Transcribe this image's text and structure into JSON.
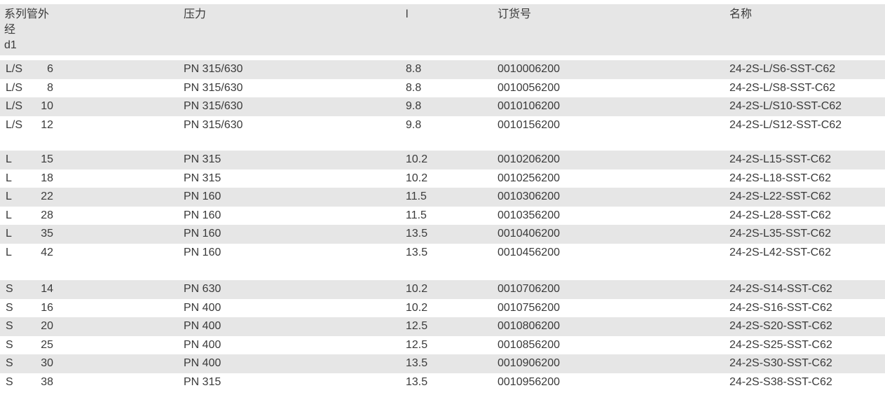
{
  "header": {
    "series_d1": "系列管外\n经\nd1",
    "pressure": "压力",
    "l": "l",
    "order_no": "订货号",
    "name": "名称"
  },
  "groups": [
    [
      {
        "series": "L/S",
        "d1": "6",
        "pressure": "PN 315/630",
        "l": "8.8",
        "order_no": "0010006200",
        "name": "24-2S-L/S6-SST-C62"
      },
      {
        "series": "L/S",
        "d1": "8",
        "pressure": "PN 315/630",
        "l": "8.8",
        "order_no": "0010056200",
        "name": "24-2S-L/S8-SST-C62"
      },
      {
        "series": "L/S",
        "d1": "10",
        "pressure": "PN 315/630",
        "l": "9.8",
        "order_no": "0010106200",
        "name": "24-2S-L/S10-SST-C62"
      },
      {
        "series": "L/S",
        "d1": "12",
        "pressure": "PN 315/630",
        "l": "9.8",
        "order_no": "0010156200",
        "name": "24-2S-L/S12-SST-C62"
      }
    ],
    [
      {
        "series": "L",
        "d1": "15",
        "pressure": "PN 315",
        "l": "10.2",
        "order_no": "0010206200",
        "name": "24-2S-L15-SST-C62"
      },
      {
        "series": "L",
        "d1": "18",
        "pressure": "PN 315",
        "l": "10.2",
        "order_no": "0010256200",
        "name": "24-2S-L18-SST-C62"
      },
      {
        "series": "L",
        "d1": "22",
        "pressure": "PN 160",
        "l": "11.5",
        "order_no": "0010306200",
        "name": "24-2S-L22-SST-C62"
      },
      {
        "series": "L",
        "d1": "28",
        "pressure": "PN 160",
        "l": "11.5",
        "order_no": "0010356200",
        "name": "24-2S-L28-SST-C62"
      },
      {
        "series": "L",
        "d1": "35",
        "pressure": "PN 160",
        "l": "13.5",
        "order_no": "0010406200",
        "name": "24-2S-L35-SST-C62"
      },
      {
        "series": "L",
        "d1": "42",
        "pressure": "PN 160",
        "l": "13.5",
        "order_no": "0010456200",
        "name": "24-2S-L42-SST-C62"
      }
    ],
    [
      {
        "series": "S",
        "d1": "14",
        "pressure": "PN 630",
        "l": "10.2",
        "order_no": "0010706200",
        "name": "24-2S-S14-SST-C62"
      },
      {
        "series": "S",
        "d1": "16",
        "pressure": "PN 400",
        "l": "10.2",
        "order_no": "0010756200",
        "name": "24-2S-S16-SST-C62"
      },
      {
        "series": "S",
        "d1": "20",
        "pressure": "PN 400",
        "l": "12.5",
        "order_no": "0010806200",
        "name": "24-2S-S20-SST-C62"
      },
      {
        "series": "S",
        "d1": "25",
        "pressure": "PN 400",
        "l": "12.5",
        "order_no": "0010856200",
        "name": "24-2S-S25-SST-C62"
      },
      {
        "series": "S",
        "d1": "30",
        "pressure": "PN 400",
        "l": "13.5",
        "order_no": "0010906200",
        "name": "24-2S-S30-SST-C62"
      },
      {
        "series": "S",
        "d1": "38",
        "pressure": "PN 315",
        "l": "13.5",
        "order_no": "0010956200",
        "name": "24-2S-S38-SST-C62"
      }
    ]
  ]
}
